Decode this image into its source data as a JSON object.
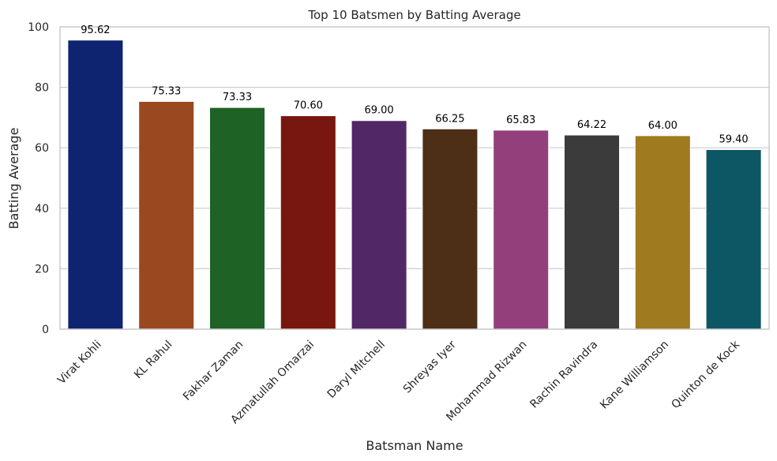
{
  "chart_data": {
    "type": "bar",
    "title": "Top 10 Batsmen by Batting Average",
    "xlabel": "Batsman Name",
    "ylabel": "Batting Average",
    "categories": [
      "Virat Kohli",
      "KL Rahul",
      "Fakhar Zaman",
      "Azmatullah Omarzai",
      "Daryl Mitchell",
      "Shreyas Iyer",
      "Mohammad Rizwan",
      "Rachin Ravindra",
      "Kane Williamson",
      "Quinton de Kock"
    ],
    "values": [
      95.62,
      75.33,
      73.33,
      70.6,
      69.0,
      66.25,
      65.83,
      64.22,
      64.0,
      59.4
    ],
    "value_labels": [
      "95.62",
      "75.33",
      "73.33",
      "70.60",
      "69.00",
      "66.25",
      "65.83",
      "64.22",
      "64.00",
      "59.40"
    ],
    "colors": [
      "#0e2470",
      "#9a4820",
      "#1e6226",
      "#781610",
      "#522765",
      "#4d2e17",
      "#933f7c",
      "#3b3b3b",
      "#a07a1e",
      "#0d5764"
    ],
    "ylim": [
      0,
      100
    ],
    "yticks": [
      0,
      20,
      40,
      60,
      80,
      100
    ],
    "ytick_labels": [
      "0",
      "20",
      "40",
      "60",
      "80",
      "100"
    ],
    "grid": true,
    "grid_color": "#cccccc",
    "spine_color": "#cccccc"
  }
}
